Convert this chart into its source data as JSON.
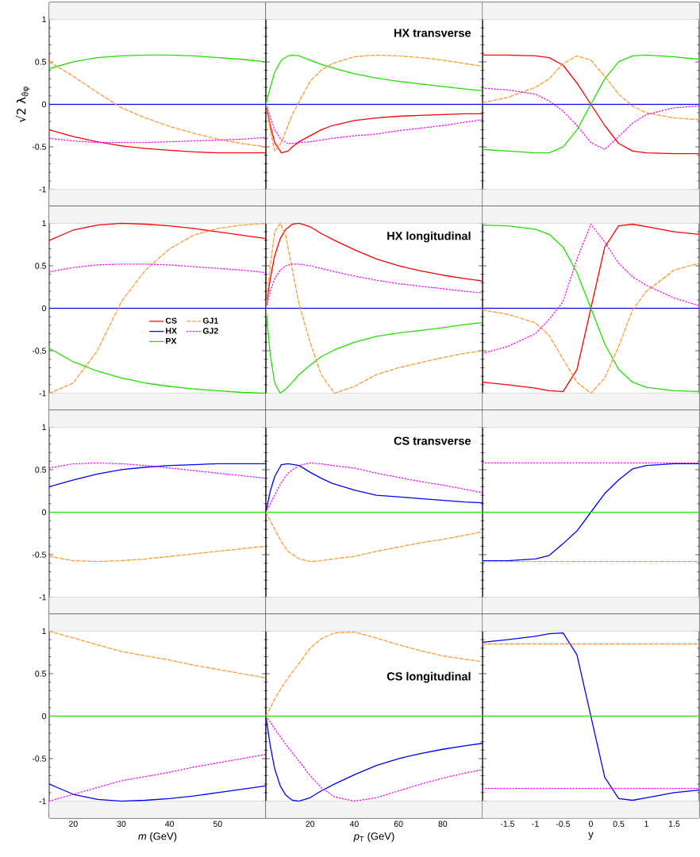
{
  "chart_data": [
    {
      "type": "line",
      "ylabel": "√2 λ$_{ϑφ}$",
      "xlim": [
        15,
        60
      ],
      "xticks": [
        20,
        30,
        40,
        50
      ],
      "ylim": [
        -1.2,
        1.2
      ],
      "yticks": [
        -1,
        -0.5,
        0,
        0.5,
        1
      ],
      "tick_labels": "y",
      "bands": [
        {
          "axis": "y",
          "from": 1,
          "to": 1.2,
          "color": "#f4f4f4"
        },
        {
          "axis": "y",
          "from": -1.2,
          "to": -1,
          "color": "#f4f4f4"
        }
      ],
      "series": [
        {
          "color": "#ff0000",
          "line_style": "solid",
          "x": [
            15,
            20,
            25,
            30,
            35,
            40,
            45,
            50,
            55,
            60
          ],
          "values": [
            -0.3,
            -0.38,
            -0.44,
            -0.49,
            -0.52,
            -0.54,
            -0.56,
            -0.57,
            -0.57,
            -0.57
          ]
        },
        {
          "color": "#0000ff",
          "line_style": "solid",
          "x": [
            15,
            60
          ],
          "values": [
            0,
            0
          ]
        },
        {
          "color": "#22e000",
          "line_style": "solid",
          "x": [
            15,
            20,
            25,
            30,
            35,
            40,
            45,
            50,
            55,
            60
          ],
          "values": [
            0.42,
            0.5,
            0.55,
            0.57,
            0.58,
            0.58,
            0.57,
            0.55,
            0.53,
            0.5
          ]
        },
        {
          "color": "#ff9933",
          "line_style": "dashed",
          "x": [
            15,
            20,
            25,
            30,
            35,
            40,
            45,
            50,
            55,
            60
          ],
          "values": [
            0.5,
            0.33,
            0.14,
            -0.04,
            -0.16,
            -0.26,
            -0.34,
            -0.41,
            -0.46,
            -0.5
          ]
        },
        {
          "color": "#ff00ff",
          "line_style": "dotted",
          "x": [
            15,
            20,
            25,
            30,
            35,
            40,
            45,
            50,
            55,
            60
          ],
          "values": [
            -0.4,
            -0.43,
            -0.45,
            -0.45,
            -0.45,
            -0.44,
            -0.43,
            -0.42,
            -0.41,
            -0.39
          ]
        }
      ]
    },
    {
      "type": "line",
      "title": "HX transverse",
      "xlim": [
        0,
        98
      ],
      "xticks": [
        20,
        40,
        60,
        80
      ],
      "ylim": [
        -1.2,
        1.2
      ],
      "yticks": [
        -1,
        -0.5,
        0,
        0.5,
        1
      ],
      "tick_labels": false,
      "bands": [
        {
          "axis": "y",
          "from": 1,
          "to": 1.2,
          "color": "#f4f4f4"
        },
        {
          "axis": "y",
          "from": -1.2,
          "to": -1,
          "color": "#f4f4f4"
        }
      ],
      "series": [
        {
          "color": "#ff0000",
          "line_style": "solid",
          "x": [
            0,
            2,
            4,
            7,
            10,
            12,
            15,
            20,
            25,
            30,
            40,
            50,
            60,
            70,
            80,
            90,
            98
          ],
          "values": [
            0,
            -0.25,
            -0.45,
            -0.57,
            -0.55,
            -0.5,
            -0.44,
            -0.37,
            -0.3,
            -0.25,
            -0.19,
            -0.16,
            -0.14,
            -0.13,
            -0.12,
            -0.11,
            -0.11
          ]
        },
        {
          "color": "#0000ff",
          "line_style": "solid",
          "x": [
            0,
            98
          ],
          "values": [
            0,
            0
          ]
        },
        {
          "color": "#22e000",
          "line_style": "solid",
          "x": [
            0,
            2,
            4,
            7,
            10,
            12,
            15,
            20,
            25,
            30,
            40,
            50,
            60,
            70,
            80,
            90,
            98
          ],
          "values": [
            0,
            0.2,
            0.38,
            0.52,
            0.57,
            0.58,
            0.57,
            0.52,
            0.47,
            0.43,
            0.36,
            0.31,
            0.27,
            0.24,
            0.21,
            0.18,
            0.16
          ]
        },
        {
          "color": "#ff9933",
          "line_style": "dashed",
          "x": [
            0,
            2,
            4,
            7,
            10,
            12,
            15,
            20,
            25,
            30,
            40,
            50,
            60,
            70,
            80,
            90,
            98
          ],
          "values": [
            0,
            -0.3,
            -0.55,
            -0.45,
            -0.25,
            -0.12,
            0.03,
            0.27,
            0.4,
            0.48,
            0.56,
            0.58,
            0.57,
            0.55,
            0.52,
            0.48,
            0.45
          ]
        },
        {
          "color": "#ff00ff",
          "line_style": "dotted",
          "x": [
            0,
            2,
            4,
            7,
            10,
            12,
            15,
            20,
            25,
            30,
            40,
            50,
            60,
            70,
            80,
            90,
            98
          ],
          "values": [
            0,
            -0.15,
            -0.3,
            -0.42,
            -0.46,
            -0.46,
            -0.45,
            -0.44,
            -0.42,
            -0.4,
            -0.37,
            -0.35,
            -0.31,
            -0.28,
            -0.25,
            -0.21,
            -0.18
          ]
        }
      ]
    },
    {
      "type": "line",
      "xlim": [
        -1.95,
        1.95
      ],
      "xticks": [
        -1.5,
        -1,
        -0.5,
        0,
        0.5,
        1,
        1.5
      ],
      "ylim": [
        -1.2,
        1.2
      ],
      "yticks": [
        -1,
        -0.5,
        0,
        0.5,
        1
      ],
      "tick_labels": false,
      "bands": [
        {
          "axis": "y",
          "from": 1,
          "to": 1.2,
          "color": "#f4f4f4"
        },
        {
          "axis": "y",
          "from": -1.2,
          "to": -1,
          "color": "#f4f4f4"
        }
      ],
      "series": [
        {
          "color": "#ff0000",
          "line_style": "solid",
          "x": [
            -1.95,
            -1.5,
            -1,
            -0.75,
            -0.5,
            -0.25,
            0,
            0.25,
            0.5,
            0.75,
            1,
            1.5,
            1.95
          ],
          "values": [
            0.58,
            0.58,
            0.57,
            0.55,
            0.46,
            0.25,
            0,
            -0.25,
            -0.46,
            -0.55,
            -0.57,
            -0.58,
            -0.58
          ]
        },
        {
          "color": "#0000ff",
          "line_style": "solid",
          "x": [
            -1.95,
            1.95
          ],
          "values": [
            0,
            0
          ]
        },
        {
          "color": "#22e000",
          "line_style": "solid",
          "x": [
            -1.95,
            -1.5,
            -1,
            -0.75,
            -0.5,
            -0.25,
            0,
            0.25,
            0.5,
            0.75,
            1,
            1.5,
            1.95
          ],
          "values": [
            -0.53,
            -0.55,
            -0.57,
            -0.57,
            -0.5,
            -0.3,
            0,
            0.3,
            0.5,
            0.57,
            0.58,
            0.56,
            0.53
          ]
        },
        {
          "color": "#ff9933",
          "line_style": "dashed",
          "x": [
            -1.95,
            -1.5,
            -1,
            -0.75,
            -0.5,
            -0.25,
            0,
            0.25,
            0.5,
            0.75,
            1,
            1.5,
            1.95
          ],
          "values": [
            0.02,
            0.08,
            0.2,
            0.3,
            0.48,
            0.57,
            0.52,
            0.33,
            0.12,
            -0.02,
            -0.1,
            -0.16,
            -0.18
          ]
        },
        {
          "color": "#ff00ff",
          "line_style": "dotted",
          "x": [
            -1.95,
            -1.5,
            -1,
            -0.75,
            -0.5,
            -0.25,
            0,
            0.25,
            0.5,
            0.75,
            1,
            1.5,
            1.95
          ],
          "values": [
            0.19,
            0.17,
            0.12,
            0.04,
            -0.08,
            -0.25,
            -0.45,
            -0.53,
            -0.38,
            -0.22,
            -0.12,
            -0.04,
            -0.02
          ]
        }
      ]
    },
    {
      "type": "line",
      "xlim": [
        15,
        60
      ],
      "xticks": [
        20,
        30,
        40,
        50
      ],
      "ylim": [
        -1.2,
        1.2
      ],
      "yticks": [
        -1,
        -0.5,
        0,
        0.5,
        1
      ],
      "tick_labels": "y",
      "legend": "center",
      "bands": [
        {
          "axis": "y",
          "from": 1,
          "to": 1.2,
          "color": "#f4f4f4"
        },
        {
          "axis": "y",
          "from": -1.2,
          "to": -1,
          "color": "#f4f4f4"
        }
      ],
      "series": [
        {
          "name": "CS",
          "color": "#ff0000",
          "line_style": "solid",
          "x": [
            15,
            20,
            25,
            30,
            35,
            40,
            45,
            50,
            55,
            60
          ],
          "values": [
            0.8,
            0.92,
            0.98,
            1.0,
            0.99,
            0.97,
            0.94,
            0.9,
            0.86,
            0.82
          ]
        },
        {
          "name": "HX",
          "color": "#0000ff",
          "line_style": "solid",
          "x": [
            15,
            60
          ],
          "values": [
            0,
            0
          ]
        },
        {
          "name": "PX",
          "color": "#22e000",
          "line_style": "solid",
          "x": [
            15,
            20,
            25,
            30,
            35,
            40,
            45,
            50,
            55,
            60
          ],
          "values": [
            -0.47,
            -0.63,
            -0.74,
            -0.82,
            -0.88,
            -0.92,
            -0.95,
            -0.97,
            -0.99,
            -1.0
          ]
        },
        {
          "name": "GJ1",
          "color": "#ff9933",
          "line_style": "dashed",
          "x": [
            15,
            20,
            25,
            30,
            35,
            40,
            45,
            50,
            55,
            60
          ],
          "values": [
            -1.0,
            -0.88,
            -0.5,
            0.08,
            0.45,
            0.7,
            0.86,
            0.94,
            0.98,
            1.0
          ]
        },
        {
          "name": "GJ2",
          "color": "#ff00ff",
          "line_style": "dotted",
          "x": [
            15,
            20,
            25,
            30,
            35,
            40,
            45,
            50,
            55,
            60
          ],
          "values": [
            0.43,
            0.48,
            0.51,
            0.52,
            0.52,
            0.51,
            0.49,
            0.47,
            0.45,
            0.42
          ]
        }
      ]
    },
    {
      "type": "line",
      "title": "HX longitudinal",
      "xlim": [
        0,
        98
      ],
      "xticks": [
        20,
        40,
        60,
        80
      ],
      "ylim": [
        -1.2,
        1.2
      ],
      "yticks": [
        -1,
        -0.5,
        0,
        0.5,
        1
      ],
      "tick_labels": false,
      "bands": [
        {
          "axis": "y",
          "from": 1,
          "to": 1.2,
          "color": "#f4f4f4"
        },
        {
          "axis": "y",
          "from": -1.2,
          "to": -1,
          "color": "#f4f4f4"
        }
      ],
      "series": [
        {
          "color": "#ff0000",
          "line_style": "solid",
          "x": [
            0,
            2,
            4,
            6.5,
            9,
            12,
            15,
            20,
            25,
            31,
            40,
            50,
            60,
            70,
            80,
            90,
            98
          ],
          "values": [
            0,
            0.35,
            0.62,
            0.82,
            0.93,
            0.99,
            1.0,
            0.96,
            0.88,
            0.8,
            0.69,
            0.58,
            0.5,
            0.44,
            0.39,
            0.35,
            0.32
          ]
        },
        {
          "color": "#0000ff",
          "line_style": "solid",
          "x": [
            0,
            98
          ],
          "values": [
            0,
            0
          ]
        },
        {
          "color": "#22e000",
          "line_style": "solid",
          "x": [
            0,
            2,
            4,
            6.5,
            9,
            12,
            15,
            20,
            25,
            31,
            40,
            50,
            60,
            70,
            80,
            90,
            98
          ],
          "values": [
            0,
            -0.55,
            -0.88,
            -1.0,
            -0.95,
            -0.87,
            -0.78,
            -0.67,
            -0.57,
            -0.49,
            -0.4,
            -0.33,
            -0.29,
            -0.26,
            -0.23,
            -0.19,
            -0.17
          ]
        },
        {
          "color": "#ff9933",
          "line_style": "dashed",
          "x": [
            0,
            2,
            4,
            6.5,
            9,
            12,
            15,
            20,
            25,
            31,
            40,
            50,
            60,
            70,
            80,
            90,
            98
          ],
          "values": [
            0,
            0.5,
            0.9,
            1.0,
            0.85,
            0.45,
            0.05,
            -0.4,
            -0.78,
            -1.0,
            -0.92,
            -0.78,
            -0.7,
            -0.64,
            -0.58,
            -0.53,
            -0.5
          ]
        },
        {
          "color": "#ff00ff",
          "line_style": "dotted",
          "x": [
            0,
            2,
            4,
            6.5,
            9,
            12,
            15,
            20,
            25,
            31,
            40,
            50,
            60,
            70,
            80,
            90,
            98
          ],
          "values": [
            0,
            0.2,
            0.35,
            0.45,
            0.5,
            0.52,
            0.52,
            0.5,
            0.47,
            0.43,
            0.38,
            0.33,
            0.29,
            0.26,
            0.23,
            0.2,
            0.18
          ]
        }
      ]
    },
    {
      "type": "line",
      "xlim": [
        -1.95,
        1.95
      ],
      "xticks": [
        -1.5,
        -1,
        -0.5,
        0,
        0.5,
        1,
        1.5
      ],
      "ylim": [
        -1.2,
        1.2
      ],
      "yticks": [
        -1,
        -0.5,
        0,
        0.5,
        1
      ],
      "tick_labels": false,
      "bands": [
        {
          "axis": "y",
          "from": 1,
          "to": 1.2,
          "color": "#f4f4f4"
        },
        {
          "axis": "y",
          "from": -1.2,
          "to": -1,
          "color": "#f4f4f4"
        }
      ],
      "series": [
        {
          "color": "#ff0000",
          "line_style": "solid",
          "x": [
            -1.95,
            -1.5,
            -1,
            -0.75,
            -0.5,
            -0.25,
            0,
            0.25,
            0.5,
            0.75,
            1,
            1.5,
            1.95
          ],
          "values": [
            -0.87,
            -0.9,
            -0.94,
            -0.97,
            -0.98,
            -0.72,
            0,
            0.72,
            0.97,
            0.99,
            0.96,
            0.9,
            0.87
          ]
        },
        {
          "color": "#0000ff",
          "line_style": "solid",
          "x": [
            -1.95,
            1.95
          ],
          "values": [
            0,
            0
          ]
        },
        {
          "color": "#22e000",
          "line_style": "solid",
          "x": [
            -1.95,
            -1.5,
            -1,
            -0.75,
            -0.5,
            -0.25,
            0,
            0.25,
            0.5,
            0.75,
            1,
            1.5,
            1.95
          ],
          "values": [
            0.98,
            0.97,
            0.93,
            0.87,
            0.72,
            0.42,
            0,
            -0.42,
            -0.72,
            -0.87,
            -0.93,
            -0.97,
            -0.98
          ]
        },
        {
          "color": "#ff9933",
          "line_style": "dashed",
          "x": [
            -1.95,
            -1.5,
            -1,
            -0.75,
            -0.5,
            -0.25,
            0,
            0.25,
            0.5,
            0.75,
            1,
            1.5,
            1.95
          ],
          "values": [
            -0.02,
            -0.07,
            -0.17,
            -0.32,
            -0.6,
            -0.87,
            -1.0,
            -0.82,
            -0.45,
            -0.02,
            0.2,
            0.45,
            0.53
          ]
        },
        {
          "color": "#ff00ff",
          "line_style": "dotted",
          "x": [
            -1.95,
            -1.5,
            -1,
            -0.75,
            -0.5,
            -0.25,
            0,
            0.25,
            0.5,
            0.75,
            1,
            1.5,
            1.95
          ],
          "values": [
            -0.53,
            -0.45,
            -0.3,
            -0.13,
            0.08,
            0.58,
            0.99,
            0.78,
            0.53,
            0.37,
            0.27,
            0.12,
            0.03
          ]
        }
      ]
    },
    {
      "type": "line",
      "xlim": [
        15,
        60
      ],
      "xticks": [
        20,
        30,
        40,
        50
      ],
      "ylim": [
        -1.2,
        1.2
      ],
      "yticks": [
        -1,
        -0.5,
        0,
        0.5,
        1
      ],
      "tick_labels": "y",
      "bands": [
        {
          "axis": "y",
          "from": 1,
          "to": 1.2,
          "color": "#f4f4f4"
        },
        {
          "axis": "y",
          "from": -1.2,
          "to": -1,
          "color": "#f4f4f4"
        }
      ],
      "series": [
        {
          "color": "#0000ff",
          "line_style": "solid",
          "x": [
            15,
            20,
            25,
            30,
            35,
            40,
            45,
            50,
            55,
            60
          ],
          "values": [
            0.3,
            0.38,
            0.45,
            0.5,
            0.53,
            0.55,
            0.56,
            0.57,
            0.57,
            0.57
          ]
        },
        {
          "color": "#22e000",
          "line_style": "solid",
          "x": [
            15,
            60
          ],
          "values": [
            0,
            0
          ]
        },
        {
          "color": "#ff9933",
          "line_style": "dashed",
          "x": [
            15,
            20,
            25,
            30,
            35,
            40,
            45,
            50,
            55,
            60
          ],
          "values": [
            -0.52,
            -0.57,
            -0.58,
            -0.57,
            -0.55,
            -0.52,
            -0.49,
            -0.46,
            -0.43,
            -0.4
          ]
        },
        {
          "color": "#ff00ff",
          "line_style": "dotted",
          "x": [
            15,
            20,
            25,
            30,
            35,
            40,
            45,
            50,
            55,
            60
          ],
          "values": [
            0.52,
            0.57,
            0.58,
            0.57,
            0.55,
            0.52,
            0.49,
            0.46,
            0.43,
            0.4
          ]
        }
      ]
    },
    {
      "type": "line",
      "title": "CS transverse",
      "xlim": [
        0,
        98
      ],
      "xticks": [
        20,
        40,
        60,
        80
      ],
      "ylim": [
        -1.2,
        1.2
      ],
      "yticks": [
        -1,
        -0.5,
        0,
        0.5,
        1
      ],
      "tick_labels": false,
      "bands": [
        {
          "axis": "y",
          "from": 1,
          "to": 1.2,
          "color": "#f4f4f4"
        },
        {
          "axis": "y",
          "from": -1.2,
          "to": -1,
          "color": "#f4f4f4"
        }
      ],
      "series": [
        {
          "color": "#0000ff",
          "line_style": "solid",
          "x": [
            0,
            2,
            4,
            7,
            10,
            15,
            20,
            25,
            30,
            40,
            50,
            60,
            70,
            80,
            90,
            98
          ],
          "values": [
            0,
            0.25,
            0.42,
            0.56,
            0.57,
            0.55,
            0.47,
            0.4,
            0.34,
            0.26,
            0.2,
            0.18,
            0.16,
            0.14,
            0.12,
            0.11
          ]
        },
        {
          "color": "#22e000",
          "line_style": "solid",
          "x": [
            0,
            98
          ],
          "values": [
            0,
            0
          ]
        },
        {
          "color": "#ff9933",
          "line_style": "dashed",
          "x": [
            0,
            2,
            4,
            7,
            10,
            15,
            20,
            25,
            30,
            40,
            50,
            60,
            70,
            80,
            90,
            98
          ],
          "values": [
            0,
            -0.1,
            -0.2,
            -0.35,
            -0.46,
            -0.55,
            -0.58,
            -0.57,
            -0.55,
            -0.52,
            -0.46,
            -0.41,
            -0.36,
            -0.32,
            -0.27,
            -0.23
          ]
        },
        {
          "color": "#ff00ff",
          "line_style": "dotted",
          "x": [
            0,
            2,
            4,
            7,
            10,
            15,
            20,
            25,
            30,
            40,
            50,
            60,
            70,
            80,
            90,
            98
          ],
          "values": [
            0,
            0.1,
            0.2,
            0.35,
            0.46,
            0.55,
            0.58,
            0.57,
            0.55,
            0.52,
            0.46,
            0.41,
            0.36,
            0.32,
            0.27,
            0.23
          ]
        }
      ]
    },
    {
      "type": "line",
      "xlim": [
        -1.95,
        1.95
      ],
      "xticks": [
        -1.5,
        -1,
        -0.5,
        0,
        0.5,
        1,
        1.5
      ],
      "ylim": [
        -1.2,
        1.2
      ],
      "yticks": [
        -1,
        -0.5,
        0,
        0.5,
        1
      ],
      "tick_labels": false,
      "bands": [
        {
          "axis": "y",
          "from": 1,
          "to": 1.2,
          "color": "#f4f4f4"
        },
        {
          "axis": "y",
          "from": -1.2,
          "to": -1,
          "color": "#f4f4f4"
        }
      ],
      "series": [
        {
          "color": "#0000ff",
          "line_style": "solid",
          "x": [
            -1.95,
            -1.5,
            -1,
            -0.75,
            -0.5,
            -0.25,
            0,
            0.25,
            0.5,
            0.75,
            1,
            1.5,
            1.95
          ],
          "values": [
            -0.57,
            -0.57,
            -0.55,
            -0.51,
            -0.37,
            -0.22,
            0,
            0.22,
            0.38,
            0.51,
            0.55,
            0.57,
            0.57
          ]
        },
        {
          "color": "#22e000",
          "line_style": "solid",
          "x": [
            -1.95,
            1.95
          ],
          "values": [
            0,
            0
          ]
        },
        {
          "color": "#ff9933",
          "line_style": "dashed",
          "x": [
            -1.95,
            1.95
          ],
          "values": [
            -0.58,
            -0.58
          ]
        },
        {
          "color": "#ff00ff",
          "line_style": "dotted",
          "x": [
            -1.95,
            1.95
          ],
          "values": [
            0.58,
            0.58
          ]
        }
      ]
    },
    {
      "type": "line",
      "xlabel": "*m* (GeV)",
      "xlim": [
        15,
        60
      ],
      "xticks": [
        20,
        30,
        40,
        50
      ],
      "ylim": [
        -1.2,
        1.2
      ],
      "yticks": [
        -1,
        -0.5,
        0,
        0.5,
        1
      ],
      "bands": [
        {
          "axis": "y",
          "from": 1,
          "to": 1.2,
          "color": "#f4f4f4"
        },
        {
          "axis": "y",
          "from": -1.2,
          "to": -1,
          "color": "#f4f4f4"
        }
      ],
      "series": [
        {
          "color": "#0000ff",
          "line_style": "solid",
          "x": [
            15,
            20,
            25,
            30,
            35,
            40,
            45,
            50,
            55,
            60
          ],
          "values": [
            -0.8,
            -0.92,
            -0.98,
            -1.0,
            -0.99,
            -0.97,
            -0.94,
            -0.9,
            -0.86,
            -0.82
          ]
        },
        {
          "color": "#22e000",
          "line_style": "solid",
          "x": [
            15,
            60
          ],
          "values": [
            0,
            0
          ]
        },
        {
          "color": "#ff9933",
          "line_style": "dashed",
          "x": [
            15,
            20,
            25,
            30,
            35,
            40,
            45,
            50,
            55,
            60
          ],
          "values": [
            1.0,
            0.92,
            0.84,
            0.76,
            0.71,
            0.66,
            0.6,
            0.55,
            0.5,
            0.45
          ]
        },
        {
          "color": "#ff00ff",
          "line_style": "dotted",
          "x": [
            15,
            20,
            25,
            30,
            35,
            40,
            45,
            50,
            55,
            60
          ],
          "values": [
            -1.0,
            -0.92,
            -0.84,
            -0.76,
            -0.71,
            -0.66,
            -0.6,
            -0.55,
            -0.5,
            -0.45
          ]
        }
      ]
    },
    {
      "type": "line",
      "title": "CS longitudinal",
      "xlabel": "*p*$_{T}$ (GeV)",
      "xlim": [
        0,
        98
      ],
      "xticks": [
        20,
        40,
        60,
        80
      ],
      "ylim": [
        -1.2,
        1.2
      ],
      "yticks": [
        -1,
        -0.5,
        0,
        0.5,
        1
      ],
      "tick_labels": "x",
      "bands": [
        {
          "axis": "y",
          "from": 1,
          "to": 1.2,
          "color": "#f4f4f4"
        },
        {
          "axis": "y",
          "from": -1.2,
          "to": -1,
          "color": "#f4f4f4"
        }
      ],
      "series": [
        {
          "color": "#0000ff",
          "line_style": "solid",
          "x": [
            0,
            2,
            4,
            6.5,
            9,
            12,
            15,
            20,
            25,
            31,
            40,
            50,
            60,
            70,
            80,
            90,
            98
          ],
          "values": [
            0,
            -0.35,
            -0.62,
            -0.82,
            -0.93,
            -0.99,
            -1.0,
            -0.96,
            -0.88,
            -0.8,
            -0.69,
            -0.58,
            -0.5,
            -0.44,
            -0.39,
            -0.35,
            -0.32
          ]
        },
        {
          "color": "#22e000",
          "line_style": "solid",
          "x": [
            0,
            98
          ],
          "values": [
            0,
            0
          ]
        },
        {
          "color": "#ff9933",
          "line_style": "dashed",
          "x": [
            0,
            2,
            4,
            6.5,
            9,
            12,
            15,
            20,
            25,
            31,
            40,
            50,
            60,
            70,
            80,
            90,
            98
          ],
          "values": [
            0,
            0.1,
            0.2,
            0.31,
            0.41,
            0.52,
            0.62,
            0.8,
            0.91,
            0.98,
            0.99,
            0.92,
            0.84,
            0.77,
            0.71,
            0.67,
            0.64
          ]
        },
        {
          "color": "#ff00ff",
          "line_style": "dotted",
          "x": [
            0,
            2,
            4,
            6.5,
            9,
            12,
            15,
            20,
            25,
            31,
            40,
            50,
            60,
            70,
            80,
            90,
            98
          ],
          "values": [
            0,
            -0.07,
            -0.15,
            -0.24,
            -0.33,
            -0.43,
            -0.53,
            -0.7,
            -0.84,
            -0.95,
            -1.0,
            -0.96,
            -0.88,
            -0.8,
            -0.73,
            -0.67,
            -0.63
          ]
        }
      ]
    },
    {
      "type": "line",
      "xlabel": "y",
      "xlim": [
        -1.95,
        1.95
      ],
      "xticks": [
        -1.5,
        -1,
        -0.5,
        0,
        0.5,
        1,
        1.5
      ],
      "ylim": [
        -1.2,
        1.2
      ],
      "yticks": [
        -1,
        -0.5,
        0,
        0.5,
        1
      ],
      "tick_labels": "x",
      "bands": [
        {
          "axis": "y",
          "from": 1,
          "to": 1.2,
          "color": "#f4f4f4"
        },
        {
          "axis": "y",
          "from": -1.2,
          "to": -1,
          "color": "#f4f4f4"
        }
      ],
      "series": [
        {
          "color": "#0000ff",
          "line_style": "solid",
          "x": [
            -1.95,
            -1.5,
            -1,
            -0.75,
            -0.5,
            -0.25,
            0,
            0.25,
            0.5,
            0.75,
            1,
            1.5,
            1.95
          ],
          "values": [
            0.87,
            0.9,
            0.94,
            0.97,
            0.98,
            0.72,
            0,
            -0.72,
            -0.97,
            -0.99,
            -0.96,
            -0.9,
            -0.87
          ]
        },
        {
          "color": "#22e000",
          "line_style": "solid",
          "x": [
            -1.95,
            1.95
          ],
          "values": [
            0,
            0
          ]
        },
        {
          "color": "#ff9933",
          "line_style": "dashed",
          "x": [
            -1.95,
            1.95
          ],
          "values": [
            0.85,
            0.85
          ]
        },
        {
          "color": "#ff00ff",
          "line_style": "dotted",
          "x": [
            -1.95,
            1.95
          ],
          "values": [
            -0.85,
            -0.85
          ]
        }
      ]
    }
  ]
}
